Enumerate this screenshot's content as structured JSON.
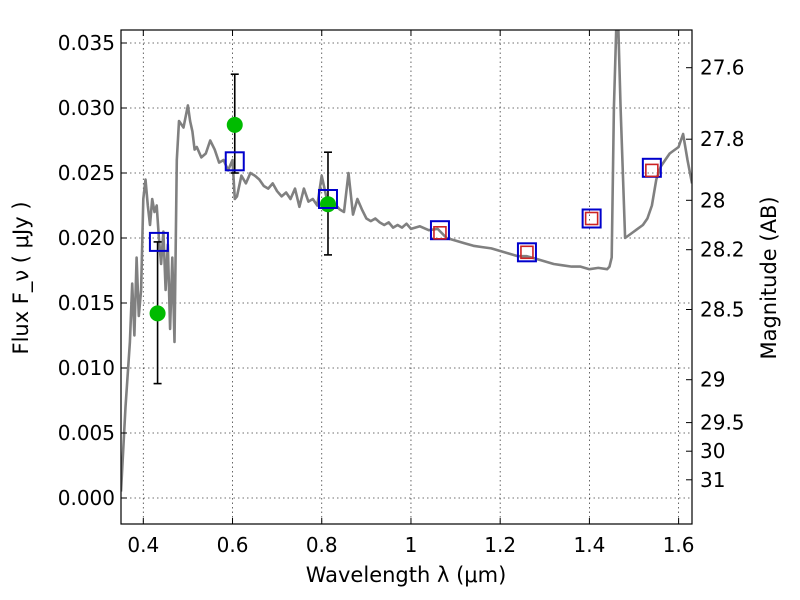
{
  "chart_data": {
    "type": "scatter",
    "title": "",
    "xlabel": "Wavelength  λ (μm)",
    "ylabel": "Flux  F_ν  ( μJy )",
    "y2label": "Magnitude (AB)",
    "xlim": [
      0.35,
      1.63
    ],
    "ylim": [
      -0.002,
      0.036
    ],
    "grid": true,
    "legend": "none",
    "x_ticks": [
      0.4,
      0.6,
      0.8,
      1.0,
      1.2,
      1.4,
      1.6
    ],
    "x_tick_labels": [
      "0.4",
      "0.6",
      "0.8",
      "1",
      "1.2",
      "1.4",
      "1.6"
    ],
    "y_ticks": [
      0.0,
      0.005,
      0.01,
      0.015,
      0.02,
      0.025,
      0.03,
      0.035
    ],
    "y_tick_labels": [
      "0.000",
      "0.005",
      "0.010",
      "0.015",
      "0.020",
      "0.025",
      "0.030",
      "0.035"
    ],
    "y2_ticks": [
      {
        "label": "27.6",
        "flux": 0.0331
      },
      {
        "label": "27.8",
        "flux": 0.0276
      },
      {
        "label": "28",
        "flux": 0.0229
      },
      {
        "label": "28.2",
        "flux": 0.0191
      },
      {
        "label": "28.5",
        "flux": 0.0145
      },
      {
        "label": "29",
        "flux": 0.0091
      },
      {
        "label": "29.5",
        "flux": 0.0058
      },
      {
        "label": "30",
        "flux": 0.0036
      },
      {
        "label": "31",
        "flux": 0.0014
      }
    ],
    "colors": {
      "model": "#808080",
      "observed": "#00bb00",
      "model_photometry": "#0000cc",
      "model_photometry_inner": "#cc2222",
      "errorbar": "#000000"
    },
    "series": [
      {
        "kind": "model_spectrum",
        "x": [
          0.35,
          0.36,
          0.37,
          0.375,
          0.38,
          0.385,
          0.39,
          0.395,
          0.4,
          0.405,
          0.41,
          0.415,
          0.42,
          0.425,
          0.43,
          0.435,
          0.44,
          0.445,
          0.45,
          0.455,
          0.46,
          0.465,
          0.47,
          0.475,
          0.48,
          0.49,
          0.5,
          0.505,
          0.51,
          0.515,
          0.52,
          0.53,
          0.54,
          0.55,
          0.56,
          0.57,
          0.58,
          0.59,
          0.6,
          0.605,
          0.61,
          0.62,
          0.63,
          0.64,
          0.65,
          0.66,
          0.67,
          0.68,
          0.69,
          0.7,
          0.71,
          0.72,
          0.73,
          0.74,
          0.75,
          0.76,
          0.77,
          0.78,
          0.79,
          0.8,
          0.81,
          0.82,
          0.83,
          0.84,
          0.85,
          0.86,
          0.87,
          0.88,
          0.89,
          0.9,
          0.91,
          0.92,
          0.93,
          0.94,
          0.95,
          0.96,
          0.97,
          0.98,
          0.99,
          1.0,
          1.02,
          1.04,
          1.06,
          1.08,
          1.1,
          1.12,
          1.14,
          1.16,
          1.18,
          1.2,
          1.22,
          1.24,
          1.26,
          1.28,
          1.3,
          1.32,
          1.34,
          1.36,
          1.38,
          1.4,
          1.42,
          1.44,
          1.445,
          1.45,
          1.455,
          1.46,
          1.465,
          1.47,
          1.48,
          1.5,
          1.52,
          1.53,
          1.54,
          1.55,
          1.56,
          1.57,
          1.58,
          1.6,
          1.61,
          1.62,
          1.63
        ],
        "y": [
          0.0005,
          0.007,
          0.012,
          0.0165,
          0.0125,
          0.0185,
          0.014,
          0.016,
          0.023,
          0.0245,
          0.0225,
          0.021,
          0.023,
          0.022,
          0.0225,
          0.02,
          0.018,
          0.0205,
          0.016,
          0.0195,
          0.013,
          0.0185,
          0.012,
          0.026,
          0.029,
          0.0285,
          0.0302,
          0.029,
          0.0282,
          0.0268,
          0.027,
          0.0262,
          0.0265,
          0.0275,
          0.0268,
          0.0258,
          0.026,
          0.0252,
          0.026,
          0.023,
          0.0232,
          0.0248,
          0.0242,
          0.025,
          0.0248,
          0.0245,
          0.024,
          0.0238,
          0.0242,
          0.0236,
          0.0232,
          0.0235,
          0.023,
          0.0238,
          0.0224,
          0.0238,
          0.0228,
          0.023,
          0.0225,
          0.0248,
          0.0232,
          0.023,
          0.0226,
          0.0222,
          0.022,
          0.025,
          0.0218,
          0.023,
          0.0222,
          0.0215,
          0.0213,
          0.0215,
          0.0212,
          0.021,
          0.0212,
          0.0208,
          0.021,
          0.0208,
          0.0211,
          0.0207,
          0.0209,
          0.0206,
          0.0207,
          0.02,
          0.0198,
          0.0196,
          0.0194,
          0.0193,
          0.0192,
          0.019,
          0.0188,
          0.0186,
          0.0186,
          0.0184,
          0.0182,
          0.018,
          0.0179,
          0.0178,
          0.0178,
          0.0176,
          0.0177,
          0.0176,
          0.0178,
          0.0185,
          0.03,
          0.036,
          0.036,
          0.03,
          0.02,
          0.0205,
          0.021,
          0.0215,
          0.0225,
          0.0245,
          0.0255,
          0.026,
          0.0265,
          0.027,
          0.028,
          0.026,
          0.0242
        ]
      },
      {
        "kind": "observed_photometry",
        "x": [
          0.432,
          0.605,
          0.814
        ],
        "y": [
          0.0142,
          0.0287,
          0.0226
        ],
        "yerr_low": [
          0.0088,
          0.025,
          0.0187
        ],
        "yerr_high": [
          0.0197,
          0.0326,
          0.0266
        ]
      },
      {
        "kind": "model_photometry",
        "x": [
          0.435,
          0.605,
          0.814,
          1.065,
          1.26,
          1.405,
          1.54
        ],
        "y": [
          0.0197,
          0.0259,
          0.023,
          0.0206,
          0.0189,
          0.0215,
          0.0254
        ]
      },
      {
        "kind": "model_photometry_inner",
        "x": [
          1.065,
          1.26,
          1.405,
          1.54
        ],
        "y": [
          0.0204,
          0.0189,
          0.0215,
          0.0252
        ]
      }
    ]
  }
}
